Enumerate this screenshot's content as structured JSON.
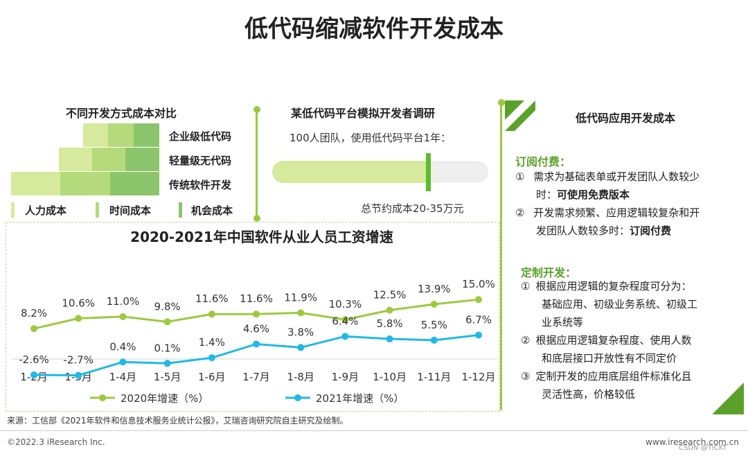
{
  "title": "低代码缩减软件开发成本",
  "left_panel": {
    "title": "不同开发方式成本对比",
    "rows": [
      "企业级低代码",
      "轻量级无代码",
      "传统软件开发"
    ],
    "legend": [
      "人力成本",
      "时间成本",
      "机会成本"
    ],
    "colors": {
      "c1": "#d6e99c",
      "c2": "#b5da7b",
      "c3": "#8cc56b"
    }
  },
  "middle_panel": {
    "title": "某低代码平台模拟开发者调研",
    "subtitle": "100人团队，使用低代码平台1年：",
    "saving": "总节约成本20-35万元",
    "progress_fraction": 0.72
  },
  "right_panel": {
    "title": "低代码应用开发成本",
    "sub_title": "订阅付费：",
    "sub_items": [
      {
        "num": "①",
        "line1": "需求为基础表单或开发团队人数较少",
        "line2_pre": "时：",
        "line2_bold": "可使用免费版本"
      },
      {
        "num": "②",
        "line1": "开发需求频繁、应用逻辑较复杂和开",
        "line2_pre": "发团队人数较多时：",
        "line2_bold": "订阅付费"
      }
    ],
    "custom_title": "定制开发：",
    "custom_items": [
      {
        "num": "①",
        "lines": [
          "根据应用逻辑的复杂程度可分为：",
          "基础应用、初级业务系统、初级工",
          "业系统等"
        ]
      },
      {
        "num": "②",
        "lines": [
          "根据应用逻辑复杂程度、使用人数",
          "和底层接口开放性有不同定价"
        ]
      },
      {
        "num": "③",
        "lines": [
          "定制开发的应用底层组件标准化且",
          "灵活性高，价格较低"
        ]
      }
    ]
  },
  "chart_data": {
    "type": "line",
    "title": "2020-2021年中国软件从业人员工资增速",
    "categories": [
      "1-2月",
      "1-3月",
      "1-4月",
      "1-5月",
      "1-6月",
      "1-7月",
      "1-8月",
      "1-9月",
      "1-10月",
      "1-11月",
      "1-12月"
    ],
    "series": [
      {
        "name": "2020年增速（%）",
        "color": "#9dc93f",
        "values": [
          8.2,
          10.6,
          11.0,
          9.8,
          11.6,
          11.6,
          11.9,
          10.3,
          12.5,
          13.9,
          15.0
        ],
        "labels": [
          "8.2%",
          "10.6%",
          "11.0%",
          "9.8%",
          "11.6%",
          "11.6%",
          "11.9%",
          "10.3%",
          "12.5%",
          "13.9%",
          "15.0%"
        ]
      },
      {
        "name": "2021年增速（%）",
        "color": "#1fb9e6",
        "values": [
          -2.6,
          -2.7,
          0.4,
          0.1,
          1.4,
          4.6,
          3.8,
          6.4,
          5.8,
          5.5,
          6.7
        ],
        "labels": [
          "-2.6%",
          "-2.7%",
          "0.4%",
          "0.1%",
          "1.4%",
          "4.6%",
          "3.8%",
          "6.4%",
          "5.8%",
          "5.5%",
          "6.7%"
        ]
      }
    ]
  },
  "source": "来源：工信部《2021年软件和信息技术服务业统计公报》，艾瑞咨询研究院自主研究及绘制。",
  "footer_left": "©2022.3 iResearch Inc.",
  "footer_right": "www.iresearch.com.cn",
  "watermark": "CSDN @TICKT"
}
